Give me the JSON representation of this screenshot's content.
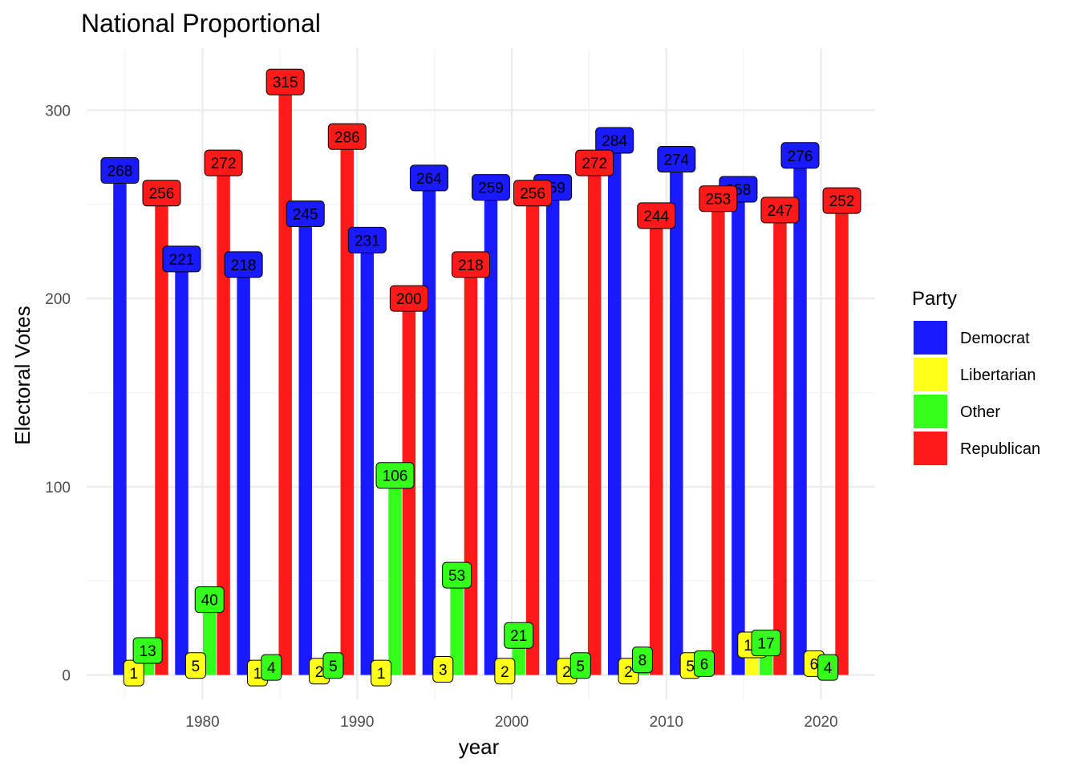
{
  "chart_data": {
    "type": "bar",
    "title": "National Proportional",
    "xlabel": "year",
    "ylabel": "Electoral Votes",
    "xlim": [
      1972.5,
      2023.5
    ],
    "ylim": [
      -13,
      333
    ],
    "x_ticks": [
      1980,
      1990,
      2000,
      2010,
      2020
    ],
    "y_ticks": [
      0,
      100,
      200,
      300
    ],
    "grid": true,
    "legend": {
      "title": "Party",
      "placement": "right"
    },
    "years": [
      1976,
      1980,
      1984,
      1988,
      1992,
      1996,
      2000,
      2004,
      2008,
      2012,
      2016,
      2020
    ],
    "series": [
      {
        "name": "Democrat",
        "color": "#1a1aff",
        "values": [
          268,
          221,
          218,
          245,
          231,
          264,
          259,
          259,
          284,
          274,
          258,
          276
        ]
      },
      {
        "name": "Libertarian",
        "color": "#ffff1a",
        "values": [
          1,
          5,
          1,
          2,
          1,
          3,
          2,
          2,
          2,
          5,
          16,
          6
        ]
      },
      {
        "name": "Other",
        "color": "#33ff1a",
        "values": [
          13,
          40,
          4,
          5,
          106,
          53,
          21,
          5,
          8,
          6,
          17,
          4
        ]
      },
      {
        "name": "Republican",
        "color": "#ff1a1a",
        "values": [
          256,
          272,
          315,
          286,
          200,
          218,
          256,
          272,
          244,
          253,
          247,
          252
        ]
      }
    ]
  }
}
